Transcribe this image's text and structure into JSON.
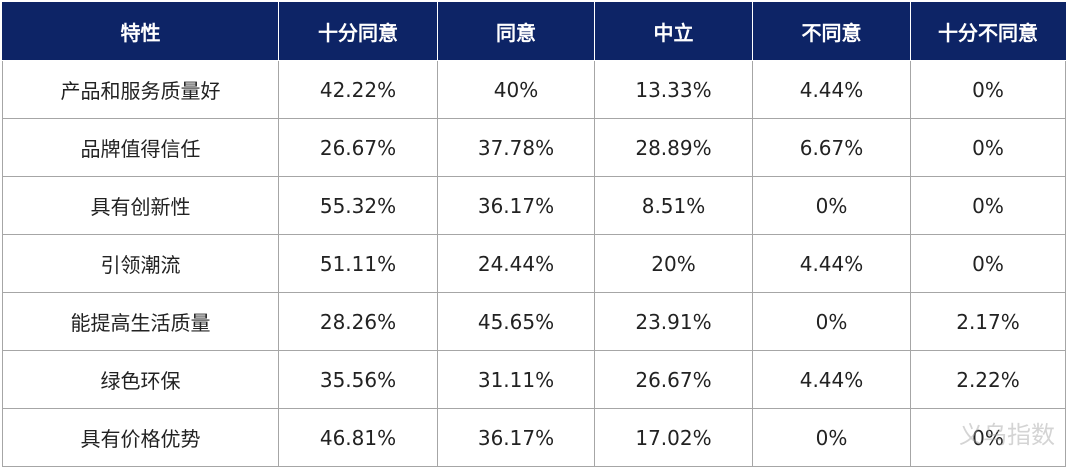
{
  "table": {
    "header": [
      "特性",
      "十分同意",
      "同意",
      "中立",
      "不同意",
      "十分不同意"
    ],
    "rows": [
      [
        "产品和服务质量好",
        "42.22%",
        "40%",
        "13.33%",
        "4.44%",
        "0%"
      ],
      [
        "品牌值得信任",
        "26.67%",
        "37.78%",
        "28.89%",
        "6.67%",
        "0%"
      ],
      [
        "具有创新性",
        "55.32%",
        "36.17%",
        "8.51%",
        "0%",
        "0%"
      ],
      [
        "引领潮流",
        "51.11%",
        "24.44%",
        "20%",
        "4.44%",
        "0%"
      ],
      [
        "能提高生活质量",
        "28.26%",
        "45.65%",
        "23.91%",
        "0%",
        "2.17%"
      ],
      [
        "绿色环保",
        "35.56%",
        "31.11%",
        "26.67%",
        "4.44%",
        "2.22%"
      ],
      [
        "具有价格优势",
        "46.81%",
        "36.17%",
        "17.02%",
        "0%",
        "0%"
      ]
    ]
  },
  "watermark": "义乌指数"
}
